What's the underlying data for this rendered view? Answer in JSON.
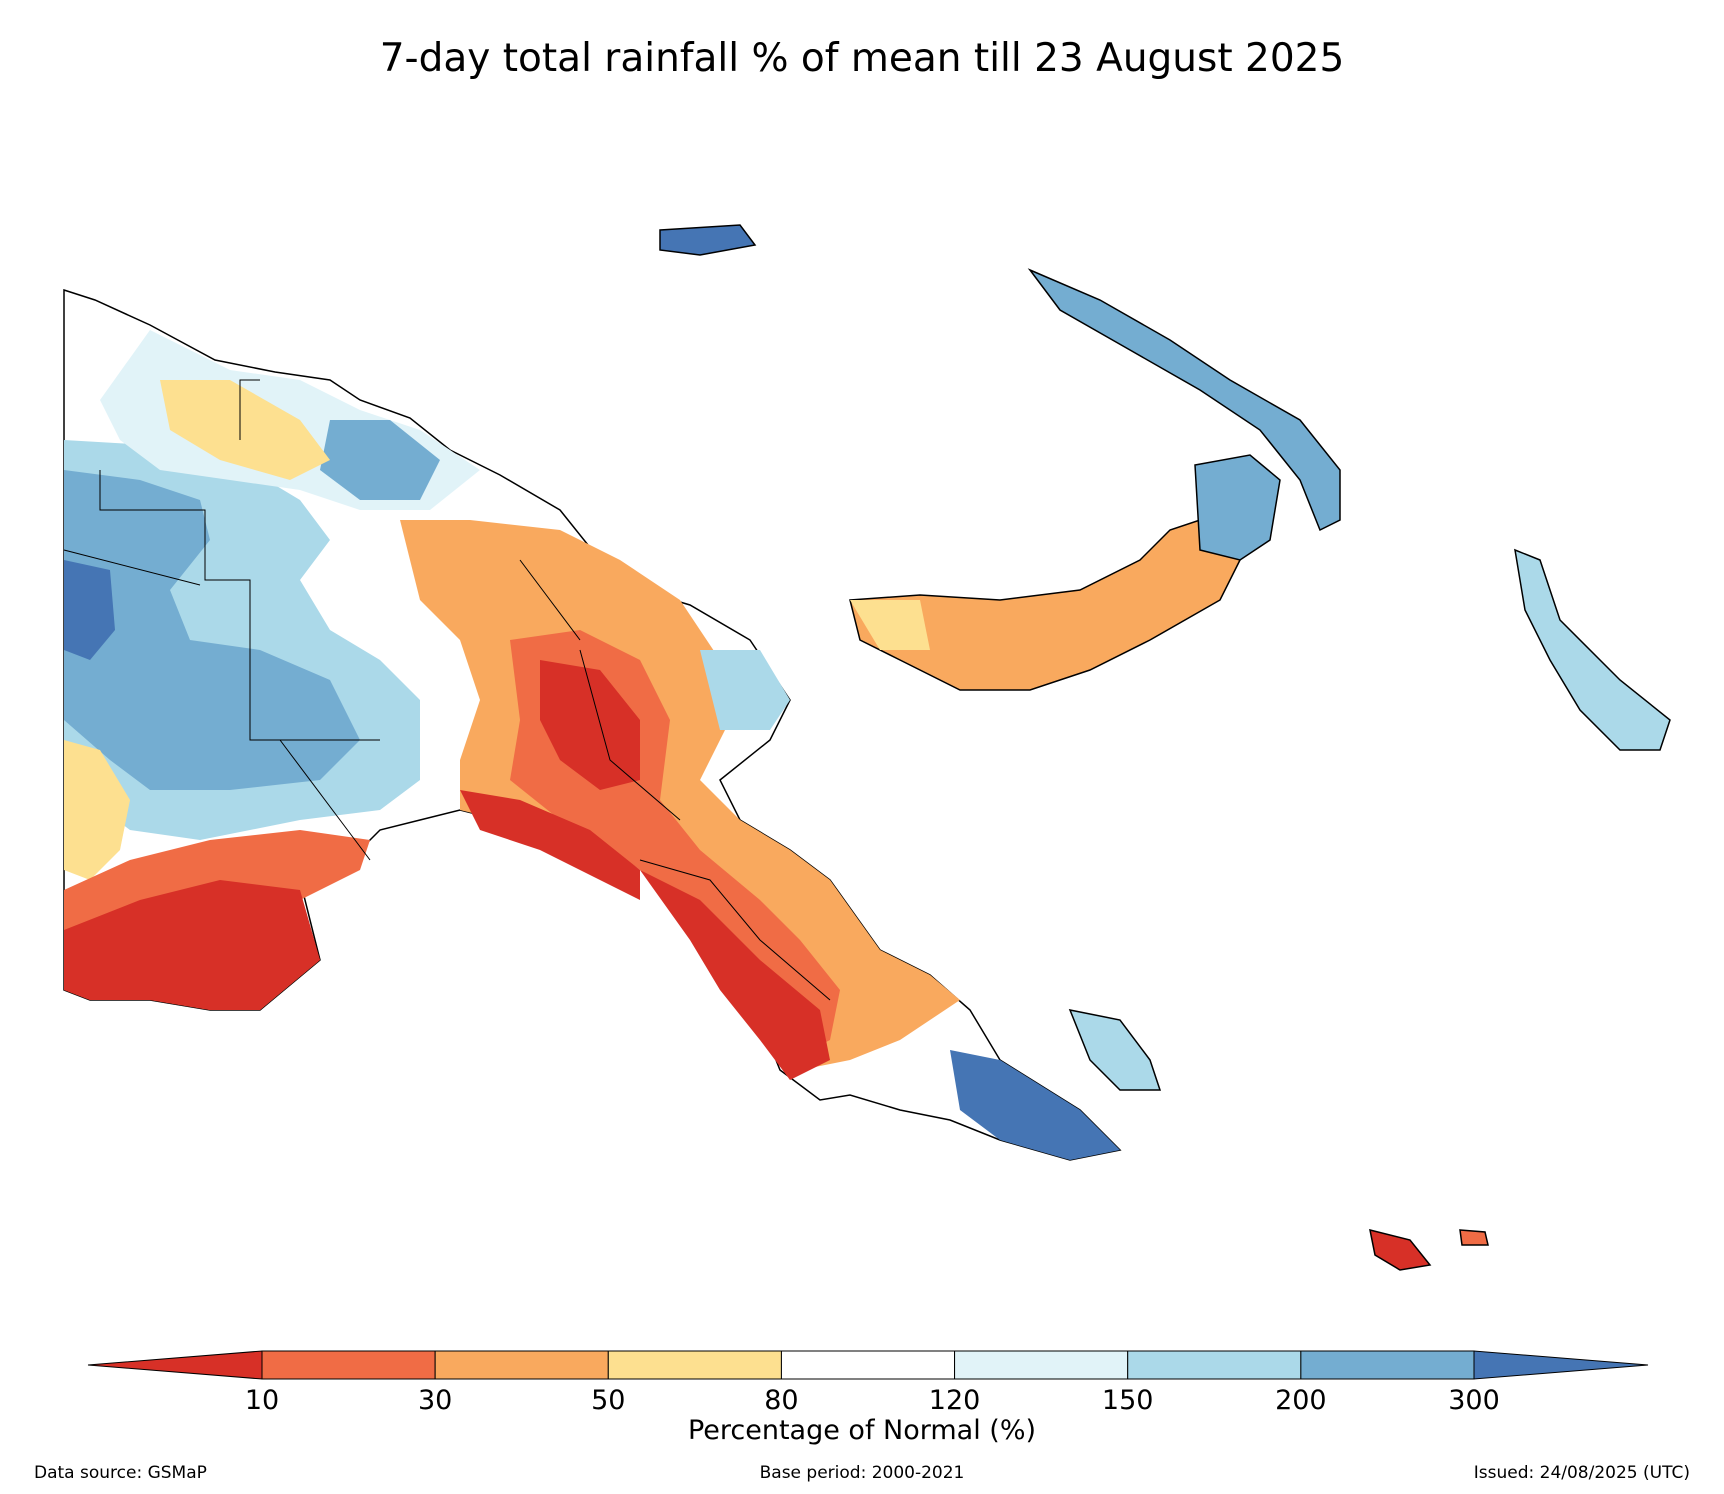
{
  "title": "7-day total rainfall % of mean till 23 August 2025",
  "colorbar": {
    "title": "Percentage of Normal (%)",
    "ticks": [
      "10",
      "30",
      "50",
      "80",
      "120",
      "150",
      "200",
      "300"
    ],
    "colors": [
      "#d73027",
      "#f06c45",
      "#f9a95e",
      "#fde090",
      "#ffffff",
      "#e1f3f8",
      "#abd9e9",
      "#74add1",
      "#4575b4"
    ]
  },
  "footer": {
    "source": "Data source: GSMaP",
    "base_period": "Base period: 2000-2021",
    "issued": "Issued: 24/08/2025 (UTC)"
  }
}
